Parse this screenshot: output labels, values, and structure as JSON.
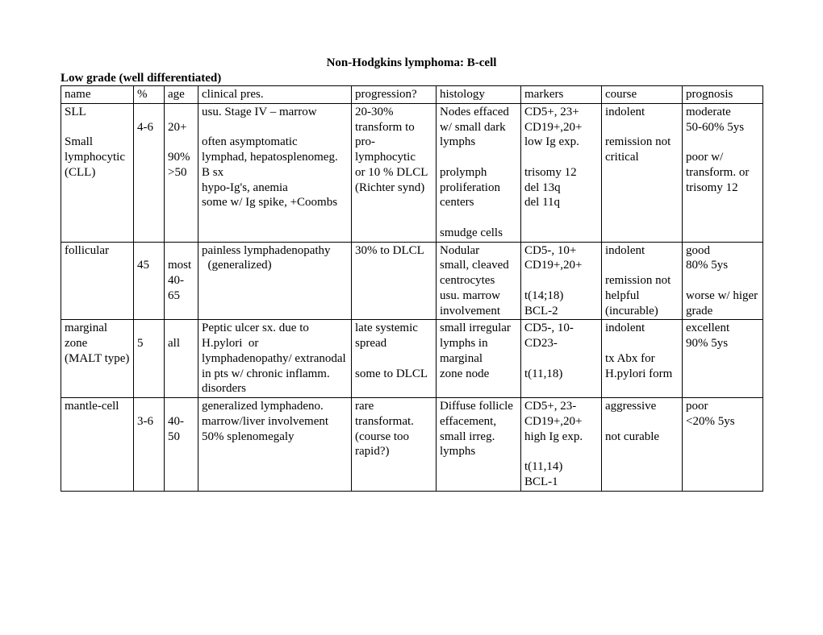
{
  "title": "Non-Hodgkins lymphoma: B-cell",
  "subtitle": "Low grade (well differentiated)",
  "headers": {
    "name": "name",
    "pct": "%",
    "age": "age",
    "clinical": "clinical pres.",
    "progression": "progression?",
    "histology": "histology",
    "markers": "markers",
    "course": "course",
    "prognosis": "prognosis"
  },
  "rows": {
    "sll": {
      "name": "SLL\n\nSmall lymphocytic (CLL)",
      "pct": "\n4-6",
      "age": "\n20+\n\n90% >50",
      "clinical": "usu. Stage IV – marrow\n\noften asymptomatic\nlymphad, hepatosplenomeg.\nB sx\nhypo-Ig's, anemia\nsome w/ Ig spike, +Coombs",
      "progression": "20-30% transform to pro-lymphocytic\nor 10 % DLCL\n(Richter synd)",
      "histology": "Nodes effaced w/ small dark lymphs\n\nprolymph proliferation centers\n\nsmudge cells",
      "markers": "CD5+, 23+\nCD19+,20+\nlow Ig exp.\n\ntrisomy 12\ndel 13q\ndel 11q",
      "course": "indolent\n\nremission not critical",
      "prognosis": "moderate\n50-60% 5ys\n\npoor w/ transform. or trisomy 12"
    },
    "follicular": {
      "name": "follicular",
      "pct": "\n45",
      "age": "\nmost 40-65",
      "clinical": "painless lymphadenopathy\n  (generalized)",
      "progression": "30% to DLCL",
      "histology": "Nodular\nsmall, cleaved centrocytes\nusu. marrow involvement",
      "markers": "CD5-, 10+\nCD19+,20+\n\nt(14;18)\nBCL-2",
      "course": "indolent\n\nremission not helpful (incurable)",
      "prognosis": "good\n80% 5ys\n\nworse w/ higer grade"
    },
    "marginal": {
      "name": "marginal zone\n(MALT type)",
      "pct": "\n5",
      "age": "\nall",
      "clinical": "Peptic ulcer sx. due to H.pylori  or lymphadenopathy/ extranodal in pts w/ chronic inflamm. disorders",
      "progression": "late systemic spread\n\nsome to DLCL",
      "histology": "small irregular lymphs in marginal\nzone node",
      "markers": "CD5-, 10-\nCD23-\n\nt(11,18)",
      "course": "indolent\n\ntx Abx for H.pylori form",
      "prognosis": "excellent\n90% 5ys"
    },
    "mantle": {
      "name": "mantle-cell",
      "pct": "\n3-6",
      "age": "\n40-50",
      "clinical": "generalized lymphadeno.\nmarrow/liver involvement\n50% splenomegaly",
      "progression": "rare transformat.\n (course too rapid?)",
      "histology": "Diffuse follicle effacement, small irreg. lymphs",
      "markers": "CD5+, 23-\nCD19+,20+\nhigh Ig exp.\n\nt(11,14)\nBCL-1",
      "course": "aggressive\n\nnot curable",
      "prognosis": "poor\n<20% 5ys"
    }
  }
}
